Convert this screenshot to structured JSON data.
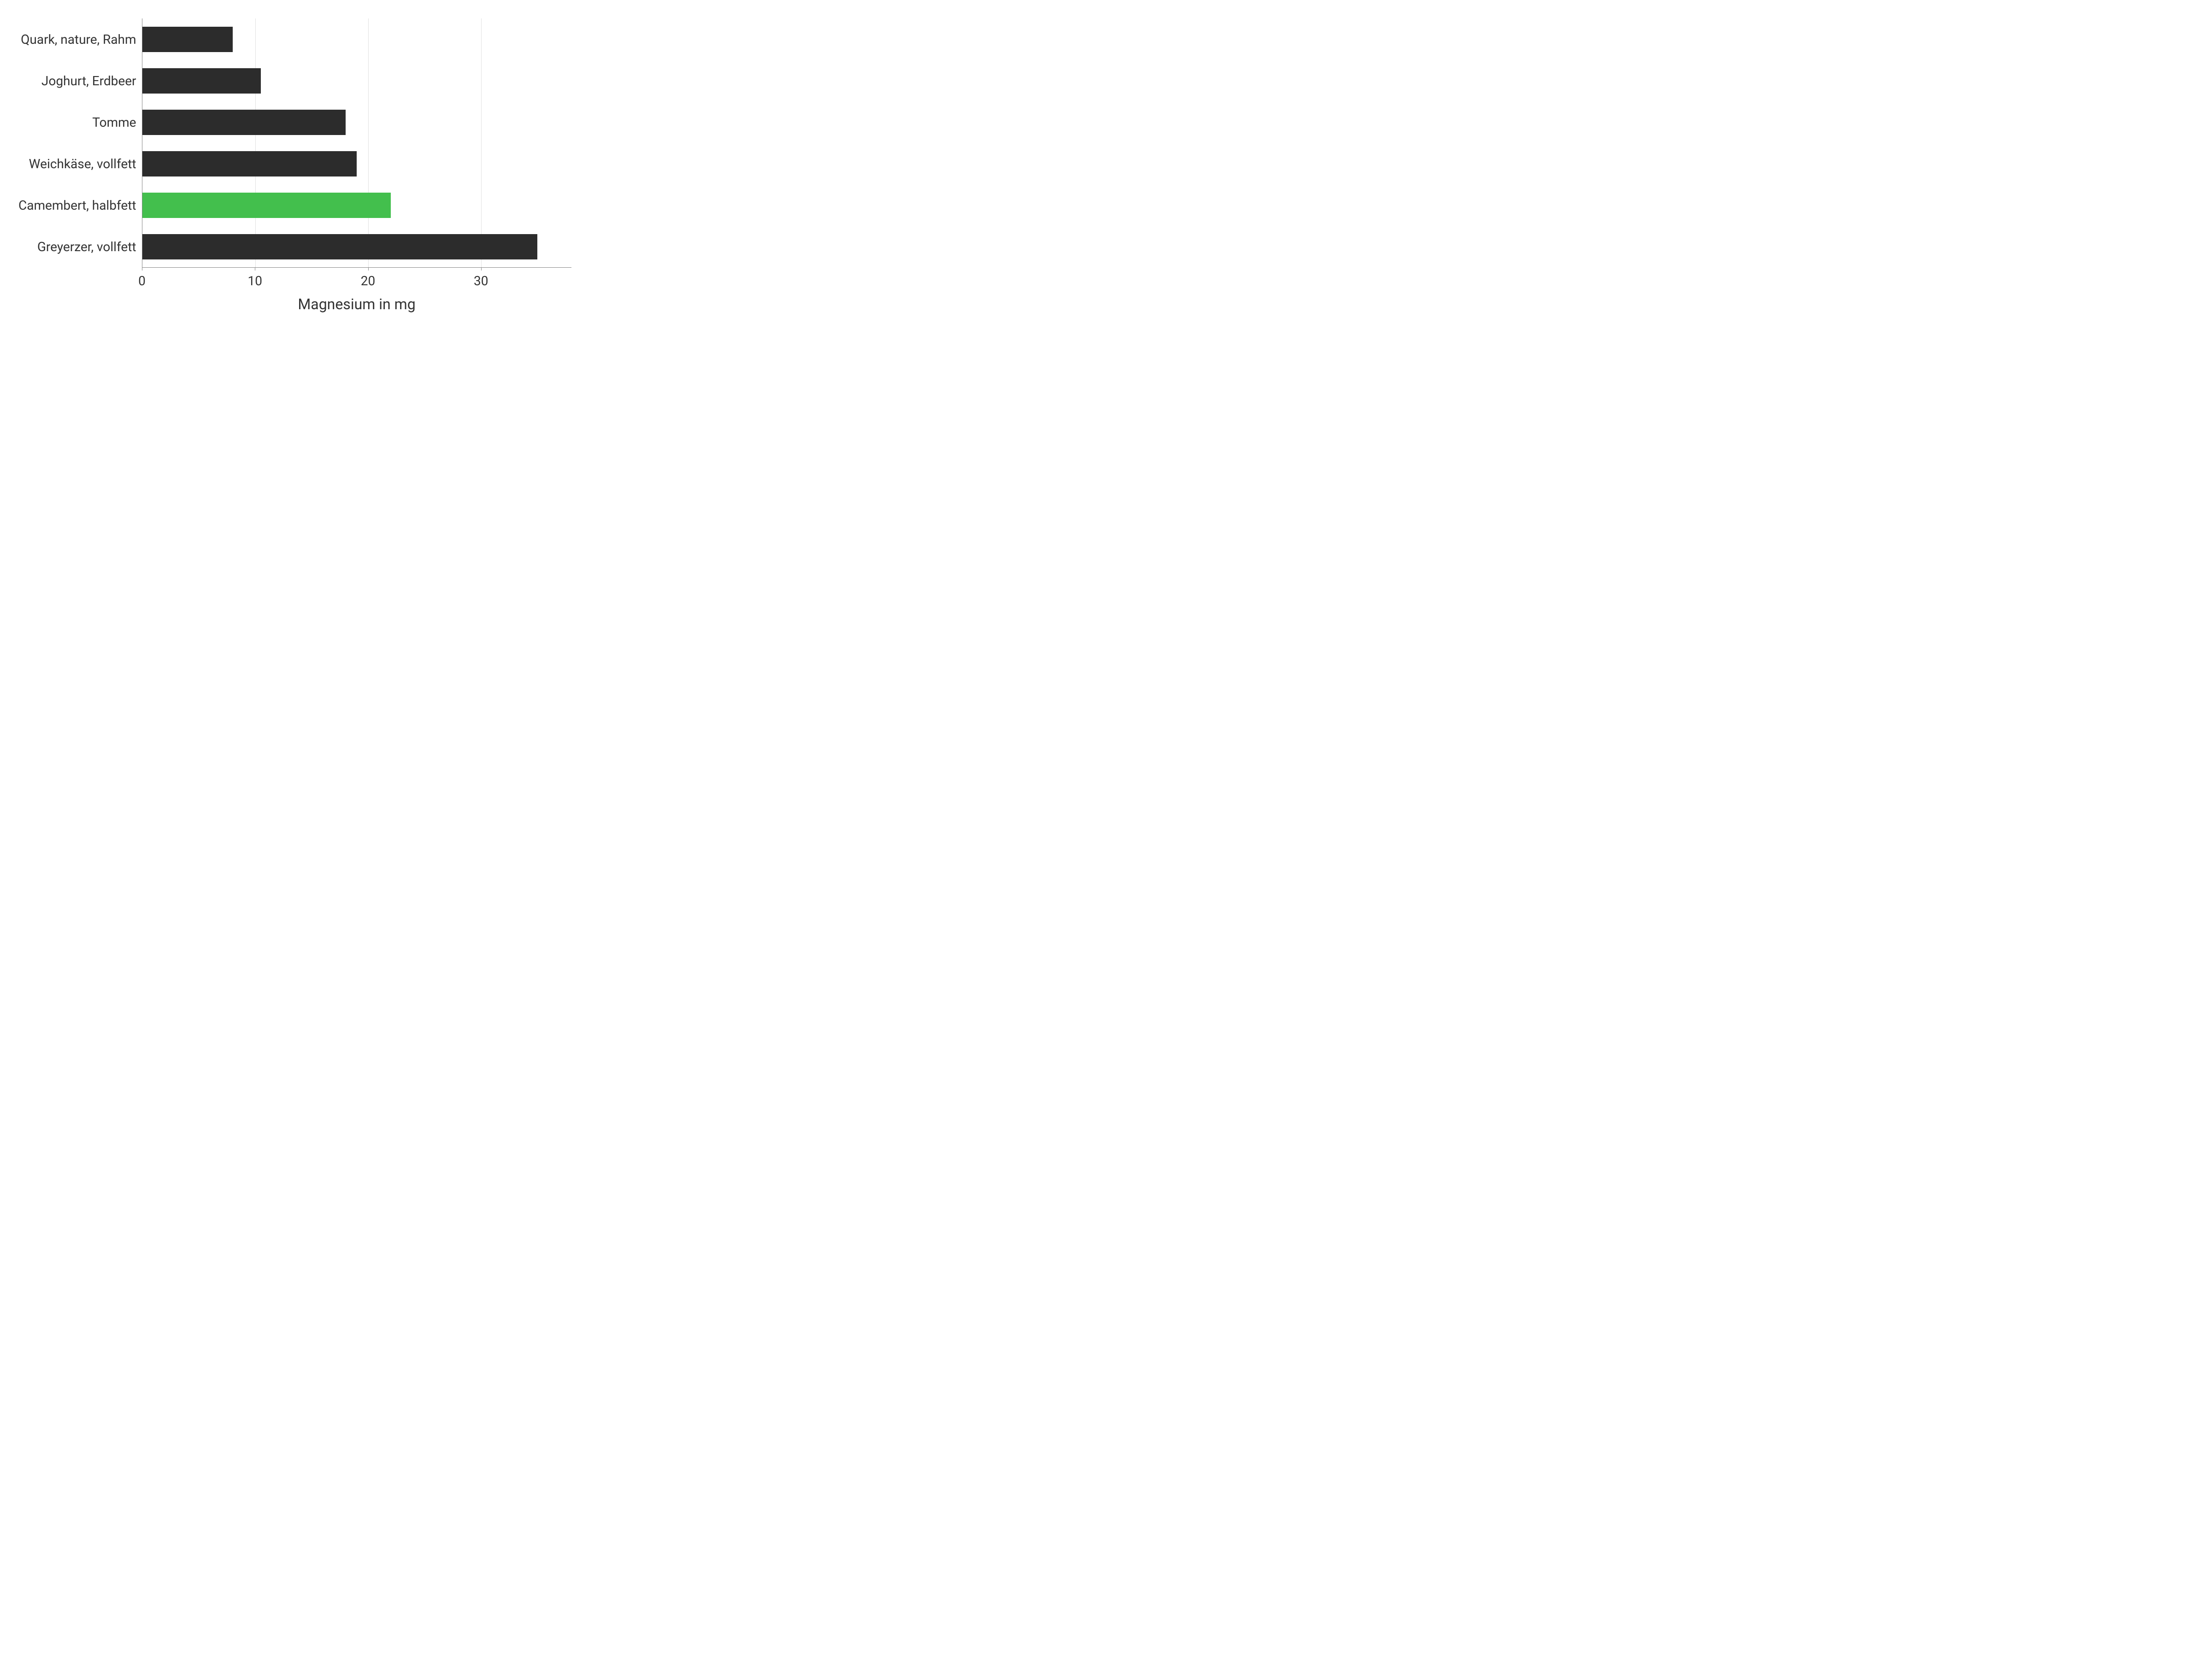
{
  "chart": {
    "type": "bar-horizontal",
    "x_title": "Magnesium in mg",
    "x_min": 0,
    "x_max": 38,
    "x_ticks": [
      0,
      10,
      20,
      30
    ],
    "background_color": "#ffffff",
    "grid_color": "#e0e0e0",
    "axis_color": "#888888",
    "text_color": "#333333",
    "label_fontsize": 28,
    "title_fontsize": 32,
    "bar_height_ratio": 0.61,
    "categories": [
      {
        "label": "Quark, nature, Rahm",
        "value": 8,
        "color": "#2c2c2c"
      },
      {
        "label": "Joghurt, Erdbeer",
        "value": 10.5,
        "color": "#2c2c2c"
      },
      {
        "label": "Tomme",
        "value": 18,
        "color": "#2c2c2c"
      },
      {
        "label": "Weichkäse, vollfett",
        "value": 19,
        "color": "#2c2c2c"
      },
      {
        "label": "Camembert, halbfett",
        "value": 22,
        "color": "#43bf4d"
      },
      {
        "label": "Greyerzer, vollfett",
        "value": 35,
        "color": "#2c2c2c"
      }
    ]
  }
}
